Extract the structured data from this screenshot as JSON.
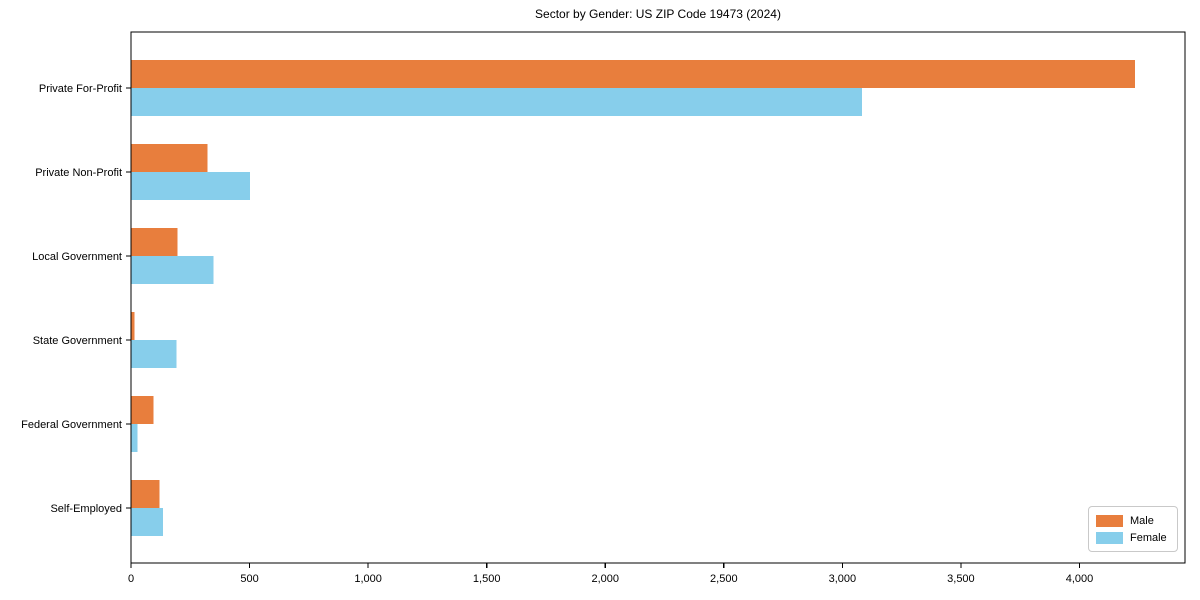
{
  "page": {
    "title": "Sector by Gender: US ZIP Code 19473 (2024)"
  },
  "chart_data": {
    "type": "bar",
    "orientation": "horizontal",
    "title": "Sector by Gender: US ZIP Code 19473 (2024)",
    "categories": [
      "Private For-Profit",
      "Private Non-Profit",
      "Local Government",
      "State Government",
      "Federal Government",
      "Self-Employed"
    ],
    "series": [
      {
        "name": "Male",
        "color": "#e87e3d",
        "values": [
          4234,
          323,
          197,
          14,
          94,
          121
        ]
      },
      {
        "name": "Female",
        "color": "#87ceeb",
        "values": [
          3082,
          502,
          347,
          191,
          27,
          134
        ]
      }
    ],
    "xlabel": "",
    "ylabel": "",
    "xlim": [
      0,
      4445
    ],
    "xticks": [
      0,
      500,
      1000,
      1500,
      2000,
      2500,
      3000,
      3500,
      4000
    ],
    "xtick_labels": [
      "0",
      "500",
      "1,000",
      "1,500",
      "2,000",
      "2,500",
      "3,000",
      "3,500",
      "4,000"
    ],
    "grid": false,
    "legend_position": "lower-right",
    "background_color": "#ffffff",
    "spine_color": "#000000",
    "text_color": "#000000"
  }
}
